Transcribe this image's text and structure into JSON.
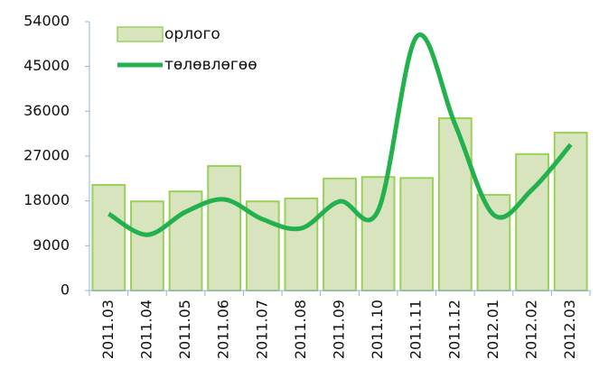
{
  "chart_data": {
    "type": "bar",
    "categories": [
      "2011.03",
      "2011.04",
      "2011.05",
      "2011.06",
      "2011.07",
      "2011.08",
      "2011.09",
      "2011.10",
      "2011.11",
      "2011.12",
      "2012.01",
      "2012.02",
      "2012.03"
    ],
    "series": [
      {
        "name": "орлого",
        "type": "bar",
        "color": "#d7e4bd",
        "values": [
          21200,
          17900,
          19900,
          25000,
          17900,
          18500,
          22500,
          22800,
          22600,
          34600,
          19200,
          27400,
          31700
        ]
      },
      {
        "name": "төлөвлөгөө",
        "type": "line",
        "color": "#22b14c",
        "values": [
          15400,
          11200,
          15800,
          18300,
          14300,
          12500,
          17900,
          16100,
          51000,
          33300,
          15200,
          20300,
          29300
        ]
      }
    ],
    "ylim": [
      0,
      54000
    ],
    "yticks": [
      0,
      9000,
      18000,
      27000,
      36000,
      45000,
      54000
    ],
    "legend": "top-left"
  }
}
